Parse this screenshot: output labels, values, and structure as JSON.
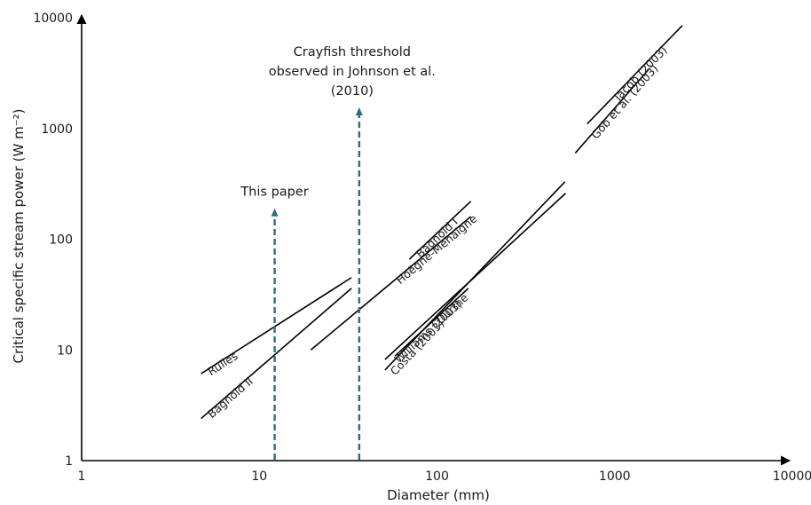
{
  "chart_data": {
    "type": "line",
    "x_scale": "log",
    "y_scale": "log",
    "xlim": [
      1,
      10000
    ],
    "ylim": [
      1,
      10000
    ],
    "grid": false,
    "xlabel": "Diameter (mm)",
    "ylabel": "Critical specific stream power (W m⁻²)",
    "x_ticks": [
      "1",
      "10",
      "100",
      "1000",
      "10000"
    ],
    "y_ticks": [
      "1",
      "10",
      "100",
      "1000",
      "10000"
    ],
    "series": [
      {
        "name": "Rulles",
        "points": [
          [
            4.7,
            6.1
          ],
          [
            33,
            45
          ]
        ]
      },
      {
        "name": "Bagnold II",
        "points": [
          [
            4.7,
            2.4
          ],
          [
            33,
            36
          ]
        ]
      },
      {
        "name": "Bagnold I",
        "points": [
          [
            70,
            66
          ],
          [
            155,
            220
          ]
        ]
      },
      {
        "name": "Hoëgne-Mehaigne",
        "points": [
          [
            19.5,
            10
          ],
          [
            155,
            160
          ]
        ]
      },
      {
        "name": "Williams (2003)",
        "points": [
          [
            51,
            8.2
          ],
          [
            530,
            260
          ]
        ]
      },
      {
        "name": "Costa (2003)",
        "points": [
          [
            51,
            6.6
          ],
          [
            525,
            330
          ]
        ]
      },
      {
        "name": "Ourthe",
        "points": [
          [
            58,
            8.8
          ],
          [
            150,
            36
          ]
        ]
      },
      {
        "name": "Gob et al. (2003)",
        "points": [
          [
            600,
            600
          ],
          [
            1520,
            3280
          ]
        ]
      },
      {
        "name": "Jacob (2003)",
        "points": [
          [
            700,
            1100
          ],
          [
            2400,
            8500
          ]
        ]
      }
    ],
    "thresholds": [
      {
        "label": "This paper",
        "x": 12.2,
        "y_top": 190,
        "color": "#2f6a80"
      },
      {
        "label_lines": [
          "Crayfish threshold",
          "observed in Johnson et al.",
          "(2010)"
        ],
        "x": 36.5,
        "y_top": 1550,
        "color": "#2f6a80"
      }
    ]
  }
}
